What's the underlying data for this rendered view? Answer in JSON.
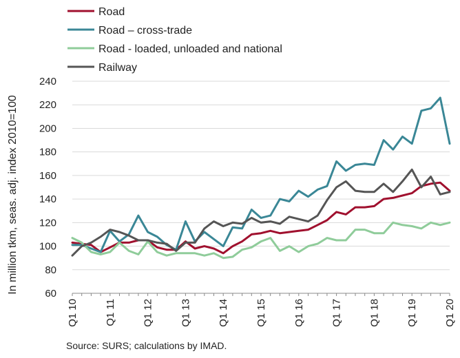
{
  "source_text": "Source: SURS; calculations by IMAD.",
  "chart_data": {
    "type": "line",
    "ylabel": "In million tkm, seas. adj. index 2010=100",
    "ylim": [
      60,
      240
    ],
    "yticks": [
      60,
      80,
      100,
      120,
      140,
      160,
      180,
      200,
      220,
      240
    ],
    "xticks": [
      "Q1 10",
      "Q1 11",
      "Q1 12",
      "Q1 13",
      "Q1 14",
      "Q1 15",
      "Q1 16",
      "Q1 17",
      "Q1 18",
      "Q1 19",
      "Q1 20"
    ],
    "x_points_per_tick": 4,
    "grid": "horizontal",
    "legend": "top-left",
    "series": [
      {
        "name": "Road",
        "color": "#a0102e",
        "values": [
          103,
          102,
          101,
          95,
          99,
          103,
          103,
          105,
          105,
          99,
          97,
          97,
          104,
          98,
          100,
          98,
          94,
          100,
          104,
          110,
          111,
          113,
          111,
          112,
          113,
          114,
          118,
          122,
          129,
          127,
          133,
          133,
          134,
          140,
          141,
          143,
          145,
          151,
          153,
          154,
          147
        ]
      },
      {
        "name": "Road – cross-trade",
        "color": "#3a8796",
        "values": [
          101,
          101,
          98,
          95,
          113,
          104,
          110,
          126,
          112,
          108,
          101,
          97,
          121,
          104,
          112,
          106,
          100,
          116,
          115,
          131,
          124,
          126,
          140,
          138,
          147,
          142,
          148,
          151,
          172,
          164,
          169,
          170,
          169,
          190,
          182,
          193,
          187,
          215,
          217,
          226,
          187
        ]
      },
      {
        "name": "Road - loaded, unloaded and national",
        "color": "#8fcc9a",
        "values": [
          107,
          103,
          95,
          93,
          95,
          103,
          96,
          93,
          104,
          95,
          92,
          94,
          94,
          94,
          92,
          94,
          90,
          91,
          97,
          99,
          104,
          107,
          96,
          100,
          95,
          100,
          102,
          107,
          105,
          105,
          114,
          114,
          111,
          111,
          120,
          118,
          117,
          115,
          120,
          118,
          120
        ]
      },
      {
        "name": "Railway",
        "color": "#555555",
        "values": [
          92,
          100,
          103,
          108,
          114,
          112,
          109,
          105,
          105,
          103,
          102,
          96,
          103,
          103,
          115,
          121,
          117,
          120,
          119,
          124,
          120,
          121,
          119,
          125,
          123,
          121,
          126,
          139,
          150,
          155,
          147,
          146,
          146,
          153,
          146,
          155,
          165,
          150,
          159,
          144,
          146
        ]
      }
    ]
  }
}
